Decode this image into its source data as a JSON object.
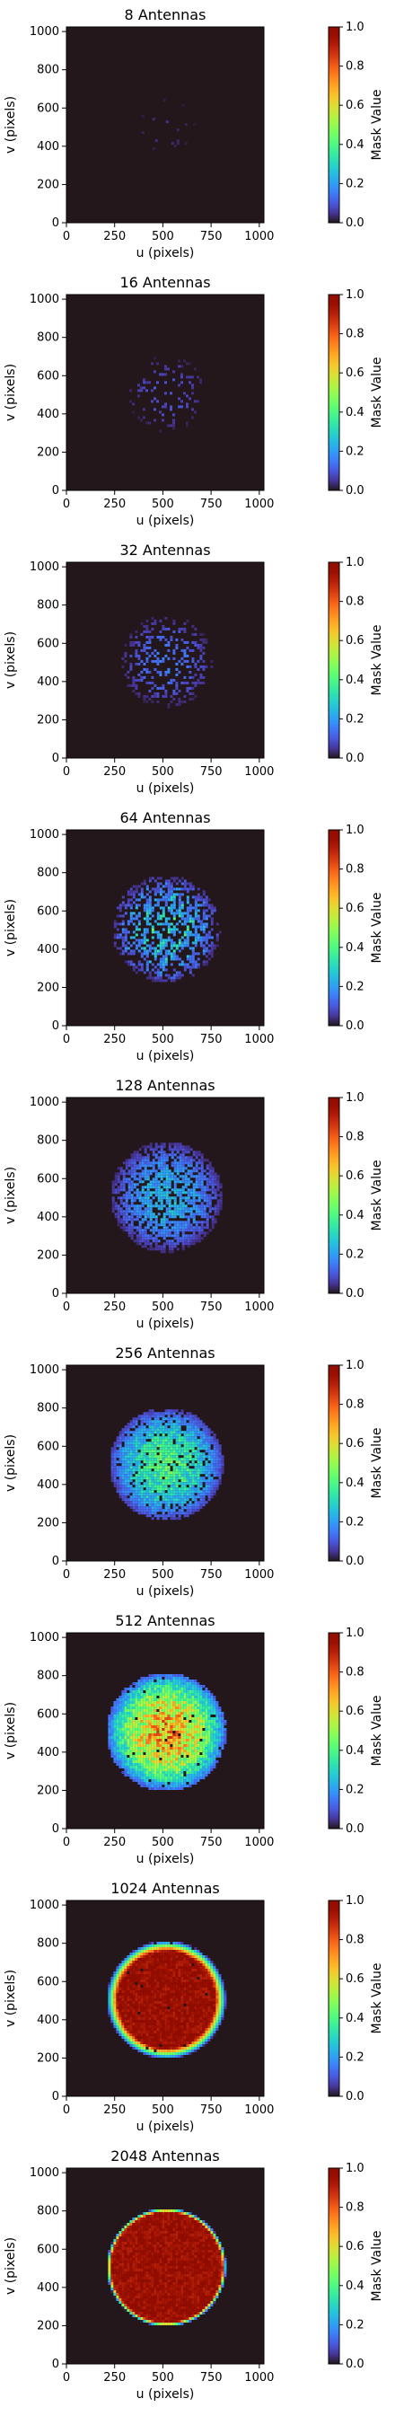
{
  "chart_data": {
    "type": "heatmap",
    "colormap": "turbo",
    "shared_axes": {
      "xlabel": "u (pixels)",
      "ylabel": "v (pixels)",
      "xlim": [
        0,
        1024
      ],
      "ylim": [
        0,
        1024
      ],
      "xticks": [
        "0",
        "250",
        "500",
        "750",
        "1000"
      ],
      "yticks": [
        "0",
        "200",
        "400",
        "600",
        "800",
        "1000"
      ],
      "colorbar_label": "Mask Value",
      "colorbar_range": [
        0.0,
        1.0
      ],
      "colorbar_ticks": [
        "0.0",
        "0.2",
        "0.4",
        "0.6",
        "0.8",
        "1.0"
      ]
    },
    "panels": [
      {
        "title": "8 Antennas",
        "antennas": 8,
        "peak_mask": 0.05,
        "radius_px": 150,
        "hole": 0,
        "sparsity": 0.96,
        "stripes": false,
        "center": [
          512,
          512
        ]
      },
      {
        "title": "16 Antennas",
        "antennas": 16,
        "peak_mask": 0.12,
        "radius_px": 200,
        "hole": 0,
        "sparsity": 0.85,
        "stripes": false,
        "center": [
          512,
          512
        ]
      },
      {
        "title": "32 Antennas",
        "antennas": 32,
        "peak_mask": 0.18,
        "radius_px": 240,
        "hole": 0,
        "sparsity": 0.7,
        "stripes": false,
        "center": [
          512,
          512
        ]
      },
      {
        "title": "64 Antennas",
        "antennas": 64,
        "peak_mask": 0.28,
        "radius_px": 280,
        "hole": 0,
        "sparsity": 0.5,
        "stripes": true,
        "center": [
          512,
          512
        ]
      },
      {
        "title": "128 Antennas",
        "antennas": 128,
        "peak_mask": 0.3,
        "radius_px": 290,
        "hole": 0,
        "sparsity": 0.25,
        "stripes": false,
        "center": [
          512,
          512
        ]
      },
      {
        "title": "256 Antennas",
        "antennas": 256,
        "peak_mask": 0.5,
        "radius_px": 295,
        "hole": 0,
        "sparsity": 0.1,
        "stripes": false,
        "center": [
          512,
          512
        ]
      },
      {
        "title": "512 Antennas",
        "antennas": 512,
        "peak_mask": 0.9,
        "radius_px": 310,
        "hole": 0,
        "sparsity": 0.03,
        "stripes": false,
        "center": [
          512,
          512
        ]
      },
      {
        "title": "1024 Antennas",
        "antennas": 1024,
        "peak_mask": 1.0,
        "radius_px": 310,
        "hole": 0,
        "sparsity": 0.01,
        "stripes": false,
        "center": [
          512,
          512
        ]
      },
      {
        "title": "2048 Antennas",
        "antennas": 2048,
        "peak_mask": 1.0,
        "radius_px": 310,
        "hole": 0,
        "sparsity": 0.0,
        "stripes": false,
        "center": [
          512,
          512
        ]
      }
    ]
  }
}
